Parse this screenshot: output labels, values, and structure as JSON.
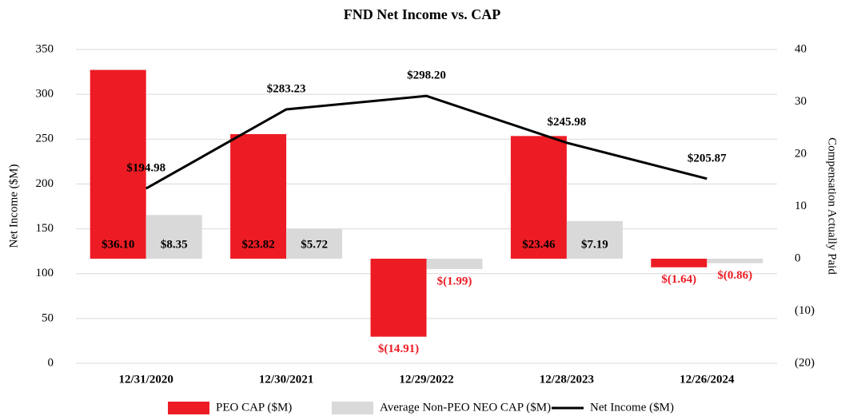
{
  "chart_data": {
    "type": "bar",
    "title": "FND Net Income vs. CAP",
    "y_label": "Net Income ($M)",
    "y2_label": "Compensation Actually Paid",
    "categories": [
      "12/31/2020",
      "12/30/2021",
      "12/29/2022",
      "12/28/2023",
      "12/26/2024"
    ],
    "series": [
      {
        "name": "PEO CAP ($M)",
        "type": "bar",
        "axis": "y2",
        "color": "#ed1c24",
        "values": [
          36.1,
          23.82,
          -14.91,
          23.46,
          -1.64
        ],
        "value_labels": [
          "$36.10",
          "$23.82",
          "$(14.91)",
          "$23.46",
          "$(1.64)"
        ]
      },
      {
        "name": "Average Non-PEO NEO CAP ($M)",
        "type": "bar",
        "axis": "y2",
        "color": "#d9d9d9",
        "values": [
          8.35,
          5.72,
          -1.99,
          7.19,
          -0.86
        ],
        "value_labels": [
          "$8.35",
          "$5.72",
          "$(1.99)",
          "$7.19",
          "$(0.86)"
        ]
      },
      {
        "name": "Net Income ($M)",
        "type": "line",
        "axis": "y",
        "color": "#000000",
        "values": [
          194.98,
          283.23,
          298.2,
          245.98,
          205.87
        ],
        "value_labels": [
          "$194.98",
          "$283.23",
          "$298.20",
          "$245.98",
          "$205.87"
        ]
      }
    ],
    "negative_label_color": "#ed1c24",
    "ylim": [
      0,
      350
    ],
    "yticks": [
      0,
      50,
      100,
      150,
      200,
      250,
      300,
      350
    ],
    "y2lim": [
      -20,
      40
    ],
    "y2ticks": [
      {
        "value": -20,
        "label": "(20)"
      },
      {
        "value": -10,
        "label": "(10)"
      },
      0,
      10,
      20,
      30,
      40
    ],
    "grid": true,
    "legend": "bottom"
  }
}
